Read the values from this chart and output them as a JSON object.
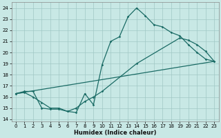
{
  "xlabel": "Humidex (Indice chaleur)",
  "bg_color": "#c8e8e5",
  "grid_color": "#a0c8c5",
  "line_color": "#1a6b65",
  "xlim": [
    -0.5,
    23.5
  ],
  "ylim": [
    13.8,
    24.5
  ],
  "xticks": [
    0,
    1,
    2,
    3,
    4,
    5,
    6,
    7,
    8,
    9,
    10,
    11,
    12,
    13,
    14,
    15,
    16,
    17,
    18,
    19,
    20,
    21,
    22,
    23
  ],
  "yticks": [
    14,
    15,
    16,
    17,
    18,
    19,
    20,
    21,
    22,
    23,
    24
  ],
  "line1_x": [
    0,
    1,
    2,
    3,
    4,
    5,
    6,
    7,
    8,
    9,
    10,
    11,
    12,
    13,
    14,
    15,
    16,
    17,
    18,
    19,
    20,
    21,
    22,
    23
  ],
  "line1_y": [
    16.3,
    16.5,
    16.5,
    15.0,
    14.9,
    14.9,
    14.7,
    14.6,
    16.3,
    15.3,
    18.9,
    21.0,
    21.4,
    23.2,
    24.0,
    23.3,
    22.5,
    22.3,
    21.8,
    21.5,
    20.7,
    20.0,
    19.4,
    19.2
  ],
  "line2_x": [
    0,
    23
  ],
  "line2_y": [
    16.3,
    19.2
  ],
  "line3_x": [
    0,
    1,
    2,
    3,
    4,
    5,
    6,
    7,
    8,
    9,
    10,
    14,
    19,
    20,
    21,
    22,
    23
  ],
  "line3_y": [
    16.3,
    16.4,
    16.0,
    15.5,
    15.0,
    15.0,
    14.7,
    15.0,
    15.6,
    16.0,
    16.5,
    19.0,
    21.3,
    21.1,
    20.7,
    20.1,
    19.2
  ]
}
